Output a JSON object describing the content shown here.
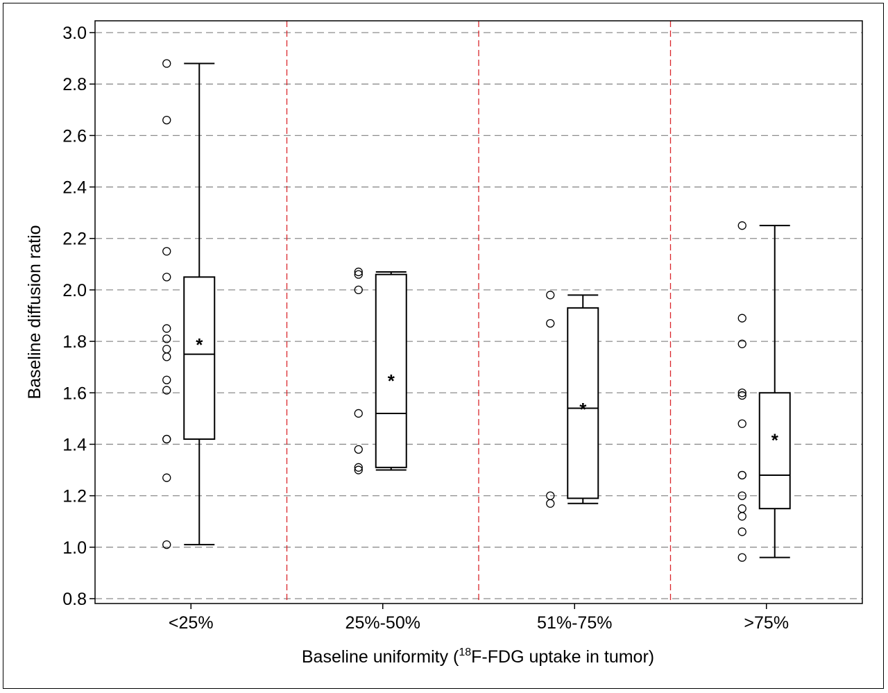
{
  "chart_data": {
    "type": "box",
    "categories": [
      "<25%",
      "25%-50%",
      "51%-75%",
      ">75%"
    ],
    "xlabel": {
      "prefix": "Baseline uniformity (",
      "superscript": "18",
      "suffix": "F-FDG uptake in tumor)"
    },
    "ylabel": "Baseline diffusion ratio",
    "ylim": [
      0.8,
      3.0
    ],
    "yticks": [
      0.8,
      1.0,
      1.2,
      1.4,
      1.6,
      1.8,
      2.0,
      2.2,
      2.4,
      2.6,
      2.8,
      3.0
    ],
    "ytick_labels": [
      "0.8",
      "1.0",
      "1.2",
      "1.4",
      "1.6",
      "1.8",
      "2.0",
      "2.2",
      "2.4",
      "2.6",
      "2.8",
      "3.0"
    ],
    "grid": "horizontal dashed",
    "separator_color": "#d9262b",
    "grid_color": "#8c8c8c",
    "mean_marker": "*",
    "boxes": [
      {
        "category": "<25%",
        "whisker_low": 1.01,
        "q1": 1.42,
        "median": 1.75,
        "q3": 2.05,
        "whisker_high": 2.88,
        "mean": 1.8,
        "points": [
          2.88,
          2.66,
          2.15,
          2.05,
          1.85,
          1.81,
          1.77,
          1.74,
          1.65,
          1.61,
          1.42,
          1.42,
          1.27,
          1.01
        ]
      },
      {
        "category": "25%-50%",
        "whisker_low": 1.3,
        "q1": 1.31,
        "median": 1.52,
        "q3": 2.06,
        "whisker_high": 2.07,
        "mean": 1.66,
        "points": [
          2.07,
          2.06,
          2.0,
          1.52,
          1.38,
          1.31,
          1.3
        ]
      },
      {
        "category": "51%-75%",
        "whisker_low": 1.17,
        "q1": 1.19,
        "median": 1.54,
        "q3": 1.93,
        "whisker_high": 1.98,
        "mean": 1.55,
        "points": [
          1.98,
          1.87,
          1.2,
          1.17
        ]
      },
      {
        "category": ">75%",
        "whisker_low": 0.96,
        "q1": 1.15,
        "median": 1.28,
        "q3": 1.6,
        "whisker_high": 2.25,
        "mean": 1.43,
        "points": [
          2.25,
          1.89,
          1.79,
          1.6,
          1.59,
          1.48,
          1.28,
          1.28,
          1.2,
          1.15,
          1.12,
          1.06,
          0.96
        ]
      }
    ]
  }
}
